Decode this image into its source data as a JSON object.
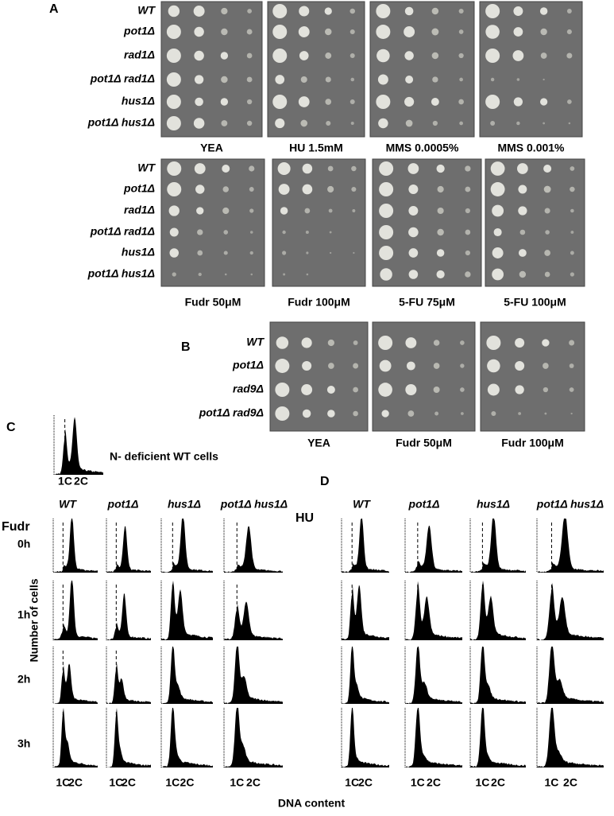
{
  "panel_a": {
    "label": "A",
    "top": {
      "strains": [
        "WT",
        "pot1Δ",
        "rad1Δ",
        "pot1Δ rad1Δ",
        "hus1Δ",
        "pot1Δ hus1Δ"
      ],
      "conditions": [
        "YEA",
        "HU 1.5mM",
        "MMS 0.0005%",
        "MMS 0.001%"
      ]
    },
    "bottom": {
      "strains": [
        "WT",
        "pot1Δ",
        "rad1Δ",
        "pot1Δ rad1Δ",
        "hus1Δ",
        "pot1Δ hus1Δ"
      ],
      "conditions": [
        "Fudr 50μM",
        "Fudr 100μM",
        "5-FU 75μM",
        "5-FU 100μM"
      ]
    }
  },
  "panel_b": {
    "label": "B",
    "strains": [
      "WT",
      "pot1Δ",
      "rad9Δ",
      "pot1Δ rad9Δ"
    ],
    "conditions": [
      "YEA",
      "Fudr 50μM",
      "Fudr 100μM"
    ]
  },
  "panel_c": {
    "label": "C",
    "inset_label": "N- deficient WT cells",
    "inset_ticks": [
      "1C",
      "2C"
    ],
    "columns": [
      "WT",
      "pot1Δ",
      "hus1Δ",
      "pot1Δ hus1Δ"
    ],
    "treatment": "Fudr",
    "rows": [
      "0h",
      "1h",
      "2h",
      "3h"
    ],
    "y_label": "Number of cells",
    "x_ticks": [
      "1C",
      "2C"
    ]
  },
  "panel_d": {
    "label": "D",
    "columns": [
      "WT",
      "pot1Δ",
      "hus1Δ",
      "pot1Δ hus1Δ"
    ],
    "treatment": "HU",
    "x_ticks": [
      "1C",
      "2C"
    ]
  },
  "x_label": "DNA content"
}
